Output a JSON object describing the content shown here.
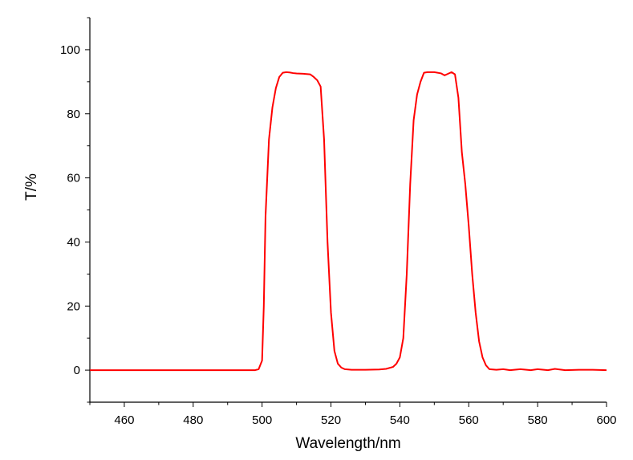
{
  "chart_data": {
    "type": "line",
    "xlabel": "Wavelength/nm",
    "ylabel": "T/%",
    "xlim": [
      450,
      600
    ],
    "ylim": [
      -10,
      110
    ],
    "x_ticks": [
      460,
      480,
      500,
      520,
      540,
      560,
      580,
      600
    ],
    "y_ticks": [
      0,
      20,
      40,
      60,
      80,
      100
    ],
    "grid": false,
    "legend": "none",
    "series": [
      {
        "color": "#ff0000",
        "points": [
          [
            450,
            0
          ],
          [
            470,
            0
          ],
          [
            490,
            0
          ],
          [
            498,
            0
          ],
          [
            499,
            0.3
          ],
          [
            500,
            3
          ],
          [
            500.5,
            20
          ],
          [
            501,
            48
          ],
          [
            502,
            72
          ],
          [
            503,
            82
          ],
          [
            504,
            88
          ],
          [
            505,
            91.5
          ],
          [
            506,
            92.8
          ],
          [
            507,
            93
          ],
          [
            508,
            92.9
          ],
          [
            509,
            92.7
          ],
          [
            510,
            92.6
          ],
          [
            512,
            92.5
          ],
          [
            514,
            92.3
          ],
          [
            515,
            91.5
          ],
          [
            516,
            90.5
          ],
          [
            517,
            88.5
          ],
          [
            518,
            72
          ],
          [
            519,
            40
          ],
          [
            520,
            18
          ],
          [
            521,
            6
          ],
          [
            522,
            2
          ],
          [
            523,
            0.8
          ],
          [
            524,
            0.3
          ],
          [
            526,
            0.1
          ],
          [
            530,
            0.1
          ],
          [
            534,
            0.2
          ],
          [
            536,
            0.4
          ],
          [
            538,
            1
          ],
          [
            539,
            2
          ],
          [
            540,
            4
          ],
          [
            541,
            10
          ],
          [
            542,
            30
          ],
          [
            543,
            58
          ],
          [
            544,
            78
          ],
          [
            545,
            86
          ],
          [
            546,
            90
          ],
          [
            547,
            92.8
          ],
          [
            548,
            93
          ],
          [
            550,
            93
          ],
          [
            552,
            92.6
          ],
          [
            553,
            92
          ],
          [
            554,
            92.5
          ],
          [
            555,
            93
          ],
          [
            556,
            92.3
          ],
          [
            557,
            85
          ],
          [
            558,
            68
          ],
          [
            559,
            58
          ],
          [
            560,
            45
          ],
          [
            561,
            30
          ],
          [
            562,
            18
          ],
          [
            563,
            9
          ],
          [
            564,
            4
          ],
          [
            565,
            1.5
          ],
          [
            566,
            0.3
          ],
          [
            568,
            0.1
          ],
          [
            570,
            0.3
          ],
          [
            572,
            0
          ],
          [
            575,
            0.3
          ],
          [
            578,
            0
          ],
          [
            580,
            0.3
          ],
          [
            583,
            0
          ],
          [
            585,
            0.4
          ],
          [
            588,
            0
          ],
          [
            592,
            0.1
          ],
          [
            596,
            0.1
          ],
          [
            600,
            0
          ]
        ]
      }
    ]
  }
}
